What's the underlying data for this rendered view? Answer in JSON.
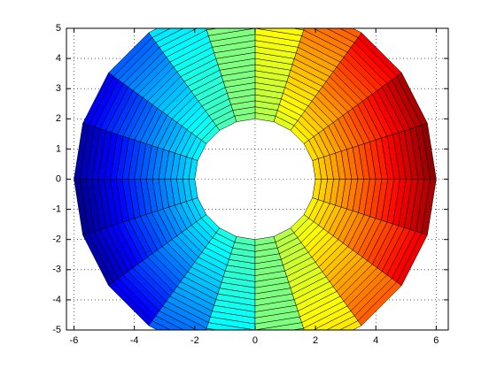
{
  "chart_data": {
    "type": "polar-surface",
    "r": [
      2,
      2.2,
      2.4,
      2.6,
      2.8,
      3,
      3.2,
      3.4,
      3.6,
      3.8,
      4,
      4.2,
      4.4,
      4.6,
      4.8,
      5,
      5.2,
      5.4,
      5.6,
      5.8,
      6
    ],
    "theta_deg": [
      0,
      18,
      36,
      54,
      72,
      90,
      108,
      126,
      144,
      162,
      180,
      198,
      216,
      234,
      252,
      270,
      288,
      306,
      324,
      342,
      360
    ],
    "colormap": "jet",
    "clim": [
      -6,
      6
    ],
    "xlim": [
      -6.25,
      6.4
    ],
    "ylim": [
      -5,
      5
    ],
    "xticks": [
      -6,
      -4,
      -2,
      0,
      2,
      4,
      6
    ],
    "yticks": [
      -5,
      -4,
      -3,
      -2,
      -1,
      0,
      1,
      2,
      3,
      4,
      5
    ],
    "grid": true
  }
}
